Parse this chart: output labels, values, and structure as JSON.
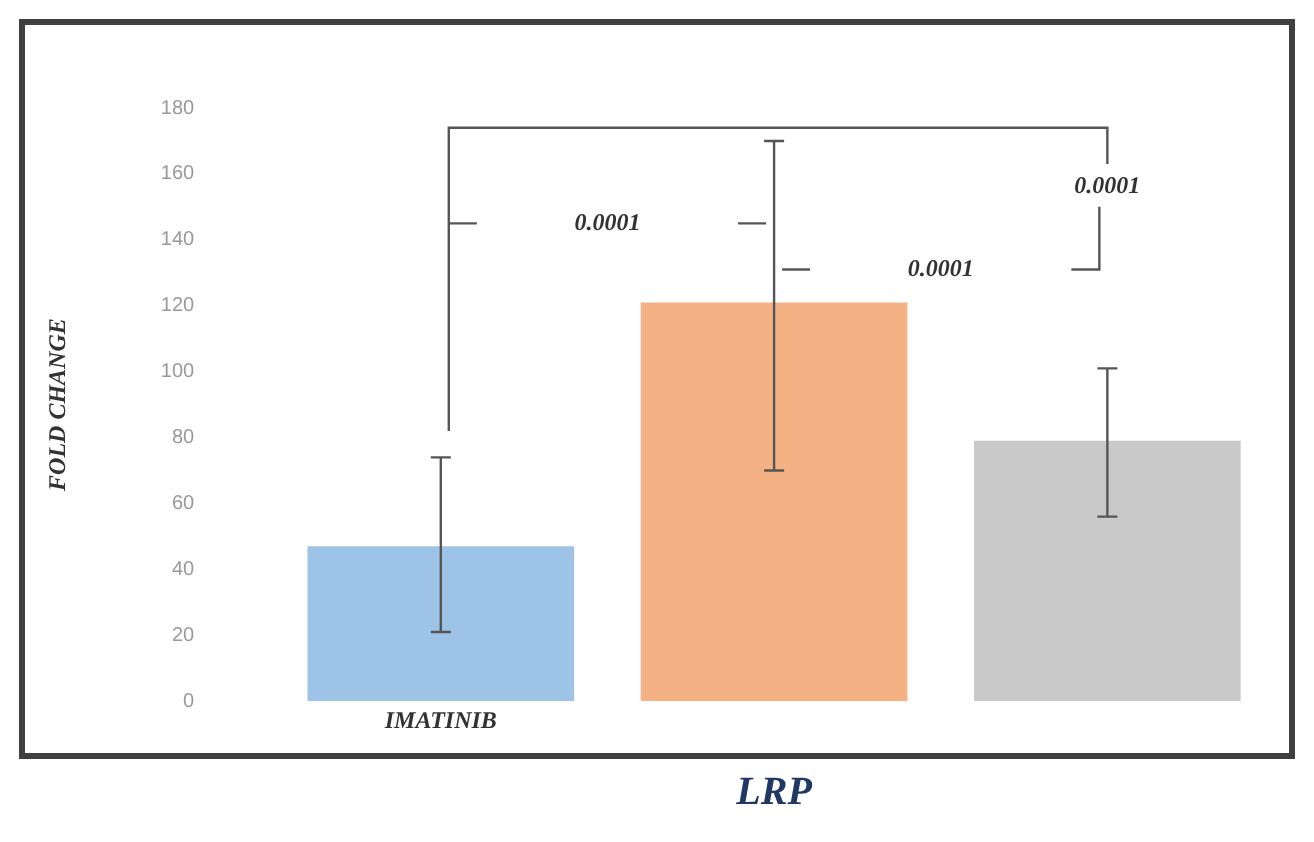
{
  "chart_data": {
    "type": "bar",
    "xlabel": "LRP",
    "ylabel": "FOLD CHANGE",
    "categories": [
      "IMATINIB",
      null,
      null
    ],
    "values": [
      47,
      121,
      79
    ],
    "colors": [
      "#9dc3e6",
      "#f4b183",
      "#c9c9c9"
    ],
    "errors": [
      [
        21,
        74
      ],
      [
        70,
        170
      ],
      [
        56,
        101
      ]
    ],
    "ylim": [
      0,
      180
    ],
    "yticks": [
      0,
      20,
      40,
      60,
      80,
      100,
      120,
      140,
      160,
      180
    ],
    "grid": false,
    "legend": false,
    "annotations": [
      "0.0001",
      "0.0001",
      "0.0001"
    ]
  }
}
